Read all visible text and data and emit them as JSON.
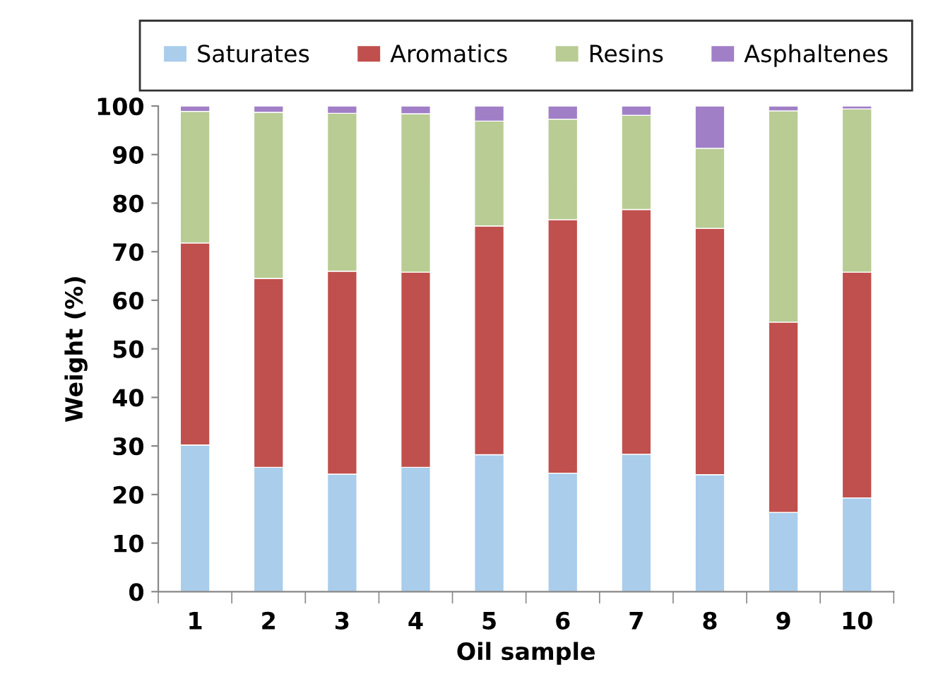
{
  "chart_data": {
    "type": "bar",
    "stacked": true,
    "xlabel": "Oil sample",
    "ylabel": "Weight (%)",
    "categories": [
      "1",
      "2",
      "3",
      "4",
      "5",
      "6",
      "7",
      "8",
      "9",
      "10"
    ],
    "series": [
      {
        "name": "Saturates",
        "color": "#a9cdeb",
        "values": [
          30.2,
          25.6,
          24.2,
          25.6,
          28.2,
          24.4,
          28.3,
          24.1,
          16.3,
          19.3
        ]
      },
      {
        "name": "Aromatics",
        "color": "#c0504d",
        "values": [
          41.6,
          38.9,
          41.8,
          40.2,
          47.1,
          52.2,
          50.4,
          50.7,
          39.2,
          46.5
        ]
      },
      {
        "name": "Resins",
        "color": "#b8cc94",
        "values": [
          27.1,
          34.2,
          32.5,
          32.6,
          21.6,
          20.7,
          19.4,
          16.5,
          43.5,
          33.6
        ]
      },
      {
        "name": "Asphaltenes",
        "color": "#a17fc7",
        "values": [
          1.1,
          1.3,
          1.5,
          1.6,
          3.1,
          2.7,
          1.9,
          8.7,
          1.0,
          0.6
        ]
      }
    ],
    "ylim": [
      0,
      100
    ],
    "yticks": [
      0,
      10,
      20,
      30,
      40,
      50,
      60,
      70,
      80,
      90,
      100
    ],
    "grid": false,
    "legend": "top"
  }
}
